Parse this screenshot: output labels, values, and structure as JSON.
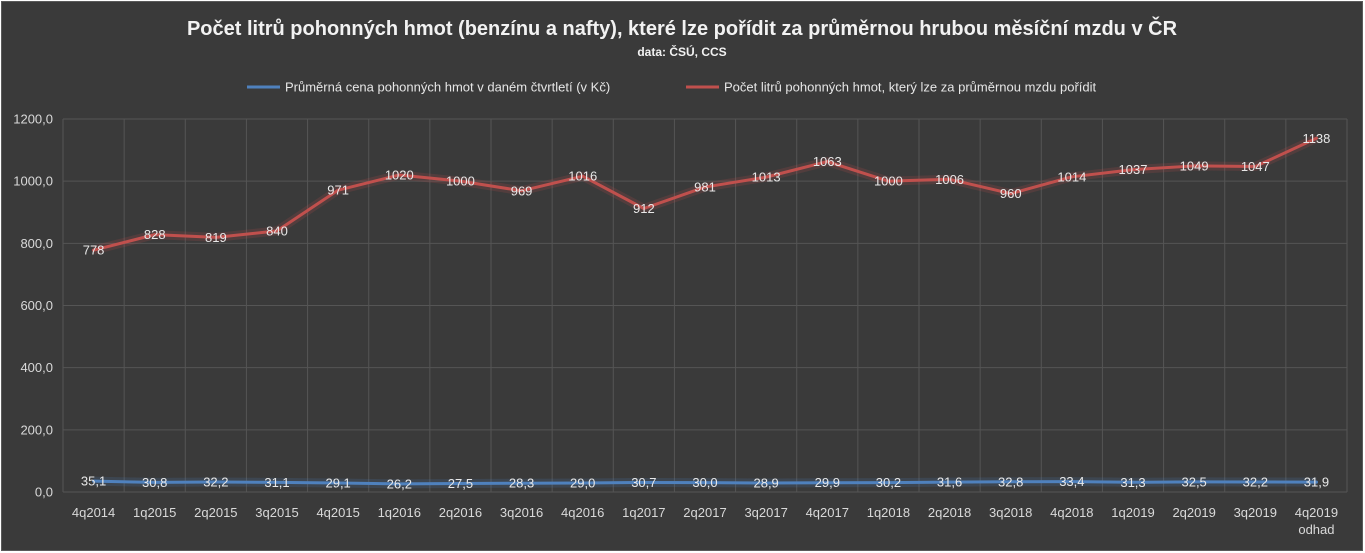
{
  "chart_data": {
    "type": "line",
    "title": "Počet litrů pohonných hmot (benzínu a nafty), které lze pořídit za průměrnou hrubou měsíční mzdu v ČR",
    "subtitle": "data: ČSÚ, CCS",
    "categories": [
      "4q2014",
      "1q2015",
      "2q2015",
      "3q2015",
      "4q2015",
      "1q2016",
      "2q2016",
      "3q2016",
      "4q2016",
      "1q2017",
      "2q2017",
      "3q2017",
      "4q2017",
      "1q2018",
      "2q2018",
      "3q2018",
      "4q2018",
      "1q2019",
      "2q2019",
      "3q2019",
      "4q2019 odhad"
    ],
    "category_lines": [
      [
        "4q2014"
      ],
      [
        "1q2015"
      ],
      [
        "2q2015"
      ],
      [
        "3q2015"
      ],
      [
        "4q2015"
      ],
      [
        "1q2016"
      ],
      [
        "2q2016"
      ],
      [
        "3q2016"
      ],
      [
        "4q2016"
      ],
      [
        "1q2017"
      ],
      [
        "2q2017"
      ],
      [
        "3q2017"
      ],
      [
        "4q2017"
      ],
      [
        "1q2018"
      ],
      [
        "2q2018"
      ],
      [
        "3q2018"
      ],
      [
        "4q2018"
      ],
      [
        "1q2019"
      ],
      [
        "2q2019"
      ],
      [
        "3q2019"
      ],
      [
        "4q2019",
        "odhad"
      ]
    ],
    "series": [
      {
        "name": "Průměrná cena pohonných hmot v daném čtvrtletí (v Kč)",
        "color": "#4f81bd",
        "values": [
          35.1,
          30.8,
          32.2,
          31.1,
          29.1,
          26.2,
          27.5,
          28.3,
          29.0,
          30.7,
          30.0,
          28.9,
          29.9,
          30.2,
          31.6,
          32.8,
          33.4,
          31.3,
          32.5,
          32.2,
          31.9
        ],
        "labels": [
          "35,1",
          "30,8",
          "32,2",
          "31,1",
          "29,1",
          "26,2",
          "27,5",
          "28,3",
          "29,0",
          "30,7",
          "30,0",
          "28,9",
          "29,9",
          "30,2",
          "31,6",
          "32,8",
          "33,4",
          "31,3",
          "32,5",
          "32,2",
          "31,9"
        ]
      },
      {
        "name": "Počet litrů pohonných hmot, který lze za průměrnou mzdu pořídit",
        "color": "#c0504d",
        "values": [
          778,
          828,
          819,
          840,
          971,
          1020,
          1000,
          969,
          1016,
          912,
          981,
          1013,
          1063,
          1000,
          1006,
          960,
          1014,
          1037,
          1049,
          1047,
          1138
        ],
        "labels": [
          "778",
          "828",
          "819",
          "840",
          "971",
          "1020",
          "1000",
          "969",
          "1016",
          "912",
          "981",
          "1013",
          "1063",
          "1000",
          "1006",
          "960",
          "1014",
          "1037",
          "1049",
          "1047",
          "1138"
        ]
      }
    ],
    "y_ticks": [
      0,
      200,
      400,
      600,
      800,
      1000,
      1200
    ],
    "y_tick_labels": [
      "0,0",
      "200,0",
      "400,0",
      "600,0",
      "800,0",
      "1000,0",
      "1200,0"
    ],
    "ylim": [
      0,
      1200
    ],
    "grid": true,
    "legend_position": "top-center"
  }
}
